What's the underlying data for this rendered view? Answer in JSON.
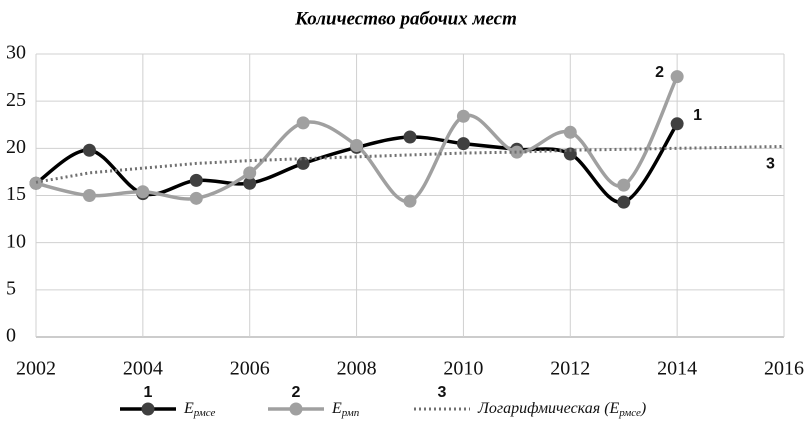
{
  "chart_data": {
    "type": "line",
    "title": "Количество рабочих мест",
    "xlim": [
      2002,
      2016
    ],
    "xticks": [
      2002,
      2004,
      2006,
      2008,
      2010,
      2012,
      2014,
      2016
    ],
    "ylim": [
      0,
      30
    ],
    "yticks": [
      0,
      5,
      10,
      15,
      20,
      25,
      30
    ],
    "grid": true,
    "series": [
      {
        "label": "1",
        "name": "E",
        "name_sub": "рмсе",
        "color": "#000000",
        "marker_color": "#404040",
        "style": "solid",
        "x": [
          2002,
          2003,
          2004,
          2005,
          2006,
          2007,
          2008,
          2009,
          2010,
          2011,
          2012,
          2013,
          2014
        ],
        "values": [
          16.3,
          19.8,
          15.2,
          16.6,
          16.3,
          18.4,
          20.1,
          21.2,
          20.5,
          19.9,
          19.4,
          14.3,
          22.6
        ]
      },
      {
        "label": "2",
        "name": "E",
        "name_sub": "рмп",
        "color": "#a0a0a0",
        "marker_color": "#a0a0a0",
        "style": "solid",
        "x": [
          2002,
          2003,
          2004,
          2005,
          2006,
          2007,
          2008,
          2009,
          2010,
          2011,
          2012,
          2013,
          2014
        ],
        "values": [
          16.3,
          15.0,
          15.4,
          14.7,
          17.4,
          22.7,
          20.3,
          14.4,
          23.4,
          19.6,
          21.7,
          16.1,
          27.6
        ]
      },
      {
        "label": "3",
        "name": "Логарифмическая (E",
        "name_sub": "рмсе",
        "name_end": ")",
        "color": "#707070",
        "style": "dotted",
        "x": [
          2002,
          2003,
          2004,
          2005,
          2006,
          2007,
          2008,
          2009,
          2010,
          2011,
          2012,
          2013,
          2014,
          2015,
          2016
        ],
        "values": [
          16.4,
          17.4,
          17.9,
          18.4,
          18.7,
          18.9,
          19.1,
          19.3,
          19.5,
          19.6,
          19.8,
          19.9,
          20.0,
          20.1,
          20.2
        ]
      }
    ]
  }
}
